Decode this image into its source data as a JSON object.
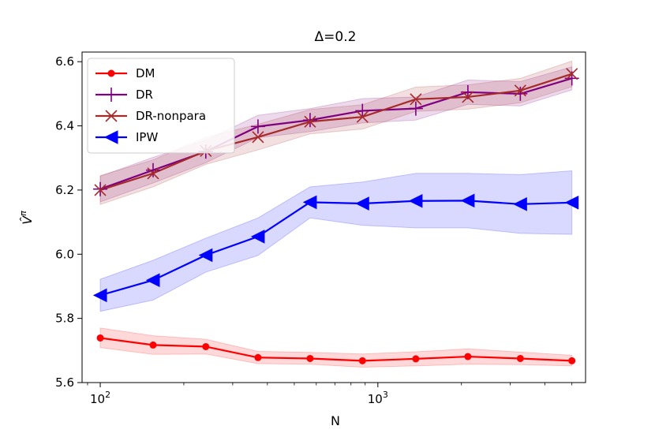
{
  "chart_data": {
    "type": "line",
    "title": "Δ=0.2",
    "xlabel": "N",
    "ylabel": "V̂^π",
    "xscale": "log",
    "xlim": [
      86,
      5600
    ],
    "ylim": [
      5.6,
      6.63
    ],
    "x_ticks": [
      {
        "value": 100,
        "base": "10",
        "exp": "2"
      },
      {
        "value": 1000,
        "base": "10",
        "exp": "3"
      }
    ],
    "y_ticks": [
      {
        "value": 5.6,
        "label": "5.6"
      },
      {
        "value": 5.8,
        "label": "5.8"
      },
      {
        "value": 6.0,
        "label": "6.0"
      },
      {
        "value": 6.2,
        "label": "6.2"
      },
      {
        "value": 6.4,
        "label": "6.4"
      },
      {
        "value": 6.6,
        "label": "6.6"
      }
    ],
    "x": [
      100,
      155,
      240,
      370,
      570,
      880,
      1370,
      2110,
      3260,
      5000
    ],
    "legend_position": "upper left",
    "series": [
      {
        "name": "DM",
        "color": "#ff0000",
        "marker": "circle",
        "values": [
          5.739,
          5.717,
          5.712,
          5.678,
          5.675,
          5.668,
          5.674,
          5.681,
          5.675,
          5.668
        ],
        "lower": [
          5.709,
          5.688,
          5.689,
          5.659,
          5.657,
          5.648,
          5.652,
          5.657,
          5.656,
          5.652
        ],
        "upper": [
          5.77,
          5.746,
          5.735,
          5.697,
          5.694,
          5.689,
          5.696,
          5.705,
          5.695,
          5.685
        ]
      },
      {
        "name": "DR",
        "color": "#800080",
        "marker": "plus",
        "values": [
          6.203,
          6.262,
          6.32,
          6.398,
          6.418,
          6.447,
          6.454,
          6.505,
          6.5,
          6.548
        ],
        "lower": [
          6.163,
          6.222,
          6.285,
          6.363,
          6.382,
          6.409,
          6.418,
          6.467,
          6.462,
          6.512
        ],
        "upper": [
          6.243,
          6.302,
          6.355,
          6.433,
          6.454,
          6.485,
          6.49,
          6.543,
          6.538,
          6.584
        ]
      },
      {
        "name": "DR-nonpara",
        "color": "#a52a2a",
        "marker": "x",
        "values": [
          6.2,
          6.252,
          6.322,
          6.365,
          6.413,
          6.428,
          6.483,
          6.49,
          6.51,
          6.562
        ],
        "lower": [
          6.155,
          6.21,
          6.28,
          6.325,
          6.375,
          6.39,
          6.445,
          6.452,
          6.472,
          6.522
        ],
        "upper": [
          6.245,
          6.294,
          6.364,
          6.405,
          6.451,
          6.466,
          6.521,
          6.528,
          6.548,
          6.602
        ]
      },
      {
        "name": "IPW",
        "color": "#0000ff",
        "marker": "triangle-left",
        "values": [
          5.872,
          5.919,
          5.997,
          6.055,
          6.162,
          6.158,
          6.166,
          6.167,
          6.156,
          6.161
        ],
        "lower": [
          5.822,
          5.857,
          5.944,
          5.996,
          6.113,
          6.09,
          6.082,
          6.082,
          6.065,
          6.062
        ],
        "upper": [
          5.922,
          5.981,
          6.05,
          6.113,
          6.21,
          6.225,
          6.252,
          6.252,
          6.248,
          6.26
        ]
      }
    ]
  }
}
